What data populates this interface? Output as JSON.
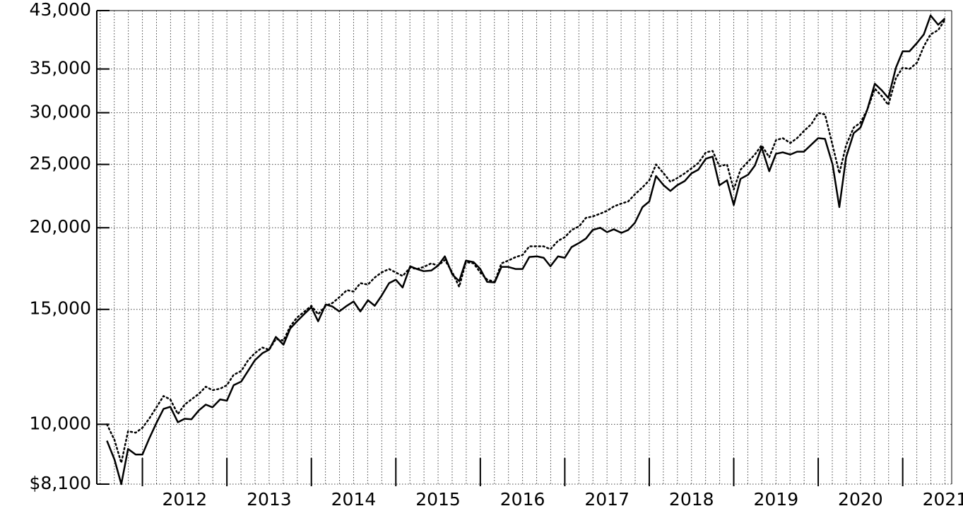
{
  "chart_data": {
    "type": "line",
    "yscale": "log",
    "grid": true,
    "xlim": [
      2011.46,
      2021.58
    ],
    "xticks": [
      2012,
      2013,
      2014,
      2015,
      2016,
      2017,
      2018,
      2019,
      2020,
      2021
    ],
    "ylim": [
      8100,
      43000
    ],
    "yticks": [
      {
        "value": 8100,
        "label": "$8,100"
      },
      {
        "value": 10000,
        "label": "10,000"
      },
      {
        "value": 15000,
        "label": "15,000"
      },
      {
        "value": 20000,
        "label": "20,000"
      },
      {
        "value": 25000,
        "label": "25,000"
      },
      {
        "value": 30000,
        "label": "30,000"
      },
      {
        "value": 35000,
        "label": "35,000"
      },
      {
        "value": 43000,
        "label": "43,000"
      }
    ],
    "x": [
      2011.58,
      2011.67,
      2011.75,
      2011.83,
      2011.92,
      2012,
      2012.08,
      2012.17,
      2012.25,
      2012.33,
      2012.42,
      2012.5,
      2012.58,
      2012.67,
      2012.75,
      2012.83,
      2012.92,
      2013,
      2013.08,
      2013.17,
      2013.25,
      2013.33,
      2013.42,
      2013.5,
      2013.58,
      2013.67,
      2013.75,
      2013.83,
      2013.92,
      2014,
      2014.08,
      2014.17,
      2014.25,
      2014.33,
      2014.42,
      2014.5,
      2014.58,
      2014.67,
      2014.75,
      2014.83,
      2014.92,
      2015,
      2015.08,
      2015.17,
      2015.25,
      2015.33,
      2015.42,
      2015.5,
      2015.58,
      2015.67,
      2015.75,
      2015.83,
      2015.92,
      2016,
      2016.08,
      2016.17,
      2016.25,
      2016.33,
      2016.42,
      2016.5,
      2016.58,
      2016.67,
      2016.75,
      2016.83,
      2016.92,
      2017,
      2017.08,
      2017.17,
      2017.25,
      2017.33,
      2017.42,
      2017.5,
      2017.58,
      2017.67,
      2017.75,
      2017.83,
      2017.92,
      2018,
      2018.08,
      2018.17,
      2018.25,
      2018.33,
      2018.42,
      2018.5,
      2018.58,
      2018.67,
      2018.75,
      2018.83,
      2018.92,
      2019,
      2019.08,
      2019.17,
      2019.25,
      2019.33,
      2019.42,
      2019.5,
      2019.58,
      2019.67,
      2019.75,
      2019.83,
      2019.92,
      2020,
      2020.08,
      2020.17,
      2020.25,
      2020.33,
      2020.42,
      2020.5,
      2020.58,
      2020.67,
      2020.75,
      2020.83,
      2020.92,
      2021,
      2021.08,
      2021.17,
      2021.25,
      2021.33,
      2021.42,
      2021.5
    ],
    "series": [
      {
        "color": "#000000",
        "style": "solid",
        "values": [
          9440,
          8830,
          8100,
          9170,
          8990,
          8990,
          9510,
          10075,
          10560,
          10640,
          10075,
          10200,
          10180,
          10510,
          10720,
          10620,
          10920,
          10870,
          11480,
          11630,
          12070,
          12530,
          12850,
          13010,
          13610,
          13240,
          14020,
          14380,
          14770,
          15110,
          14380,
          15260,
          15150,
          14890,
          15190,
          15420,
          14890,
          15490,
          15190,
          15730,
          16450,
          16650,
          16200,
          17460,
          17290,
          17160,
          17200,
          17500,
          18080,
          16950,
          16570,
          17810,
          17720,
          17290,
          16530,
          16490,
          17420,
          17420,
          17290,
          17290,
          18040,
          18080,
          17990,
          17460,
          18080,
          17990,
          18680,
          18960,
          19250,
          19840,
          20000,
          19690,
          19890,
          19640,
          19840,
          20350,
          21510,
          21940,
          24000,
          23230,
          22770,
          23230,
          23580,
          24230,
          24540,
          25510,
          25700,
          23230,
          23640,
          21670,
          23760,
          24110,
          24900,
          26550,
          24410,
          25960,
          26090,
          25890,
          26150,
          26150,
          26820,
          27430,
          27360,
          25000,
          21510,
          25640,
          27910,
          28470,
          30300,
          33230,
          32490,
          31610,
          35170,
          37250,
          37250,
          38380,
          39540,
          42260,
          40910,
          41840
        ]
      },
      {
        "color": "#000000",
        "style": "dotted",
        "values": [
          10000,
          9460,
          8730,
          9760,
          9710,
          9880,
          10200,
          10640,
          11050,
          10920,
          10370,
          10720,
          10920,
          11140,
          11420,
          11280,
          11340,
          11480,
          11910,
          12070,
          12530,
          12850,
          13110,
          13010,
          13510,
          13440,
          14130,
          14570,
          14890,
          15190,
          14740,
          15190,
          15340,
          15650,
          16050,
          15970,
          16450,
          16370,
          16780,
          17080,
          17290,
          17080,
          16870,
          17380,
          17290,
          17420,
          17640,
          17500,
          17850,
          17080,
          16240,
          17720,
          17640,
          17080,
          16660,
          16530,
          17640,
          17810,
          18040,
          18170,
          18730,
          18730,
          18730,
          18540,
          19100,
          19340,
          19840,
          20100,
          20710,
          20810,
          21020,
          21230,
          21560,
          21780,
          21940,
          22500,
          23060,
          23640,
          25000,
          24230,
          23520,
          23820,
          24230,
          24660,
          25120,
          26090,
          26220,
          24840,
          25000,
          22880,
          24540,
          25250,
          25890,
          26750,
          25640,
          27230,
          27430,
          26960,
          27430,
          28120,
          28830,
          29970,
          29820,
          26750,
          24230,
          26750,
          28470,
          28970,
          30300,
          32650,
          31830,
          30830,
          33900,
          35170,
          35000,
          35790,
          37910,
          39540,
          40140,
          41630
        ]
      }
    ]
  }
}
